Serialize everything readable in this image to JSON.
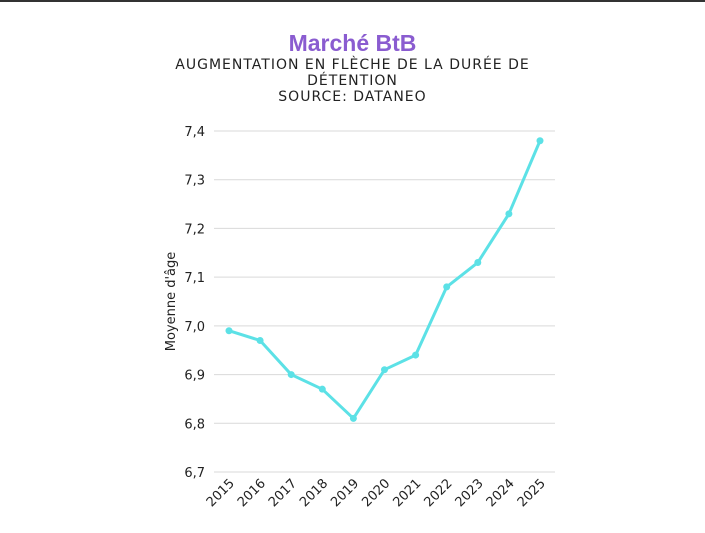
{
  "chart_data": {
    "type": "line",
    "title": "Marché BtB",
    "subtitle_lines": [
      "AUGMENTATION EN FLÈCHE DE LA DURÉE DE",
      "DÉTENTION",
      "SOURCE: DATANEO"
    ],
    "xlabel": "",
    "ylabel": "Moyenne d'âge",
    "categories": [
      "2015",
      "2016",
      "2017",
      "2018",
      "2019",
      "2020",
      "2021",
      "2022",
      "2023",
      "2024",
      "2025"
    ],
    "values": [
      6.99,
      6.97,
      6.9,
      6.87,
      6.81,
      6.91,
      6.94,
      7.08,
      7.13,
      7.23,
      7.38
    ],
    "ylim": [
      6.7,
      7.4
    ],
    "yticks": [
      "6,7",
      "6,8",
      "6,9",
      "7,0",
      "7,1",
      "7,2",
      "7,3",
      "7,4"
    ],
    "grid": true,
    "colors": {
      "line": "#5ce1e6",
      "title": "#8a5cd0"
    }
  }
}
